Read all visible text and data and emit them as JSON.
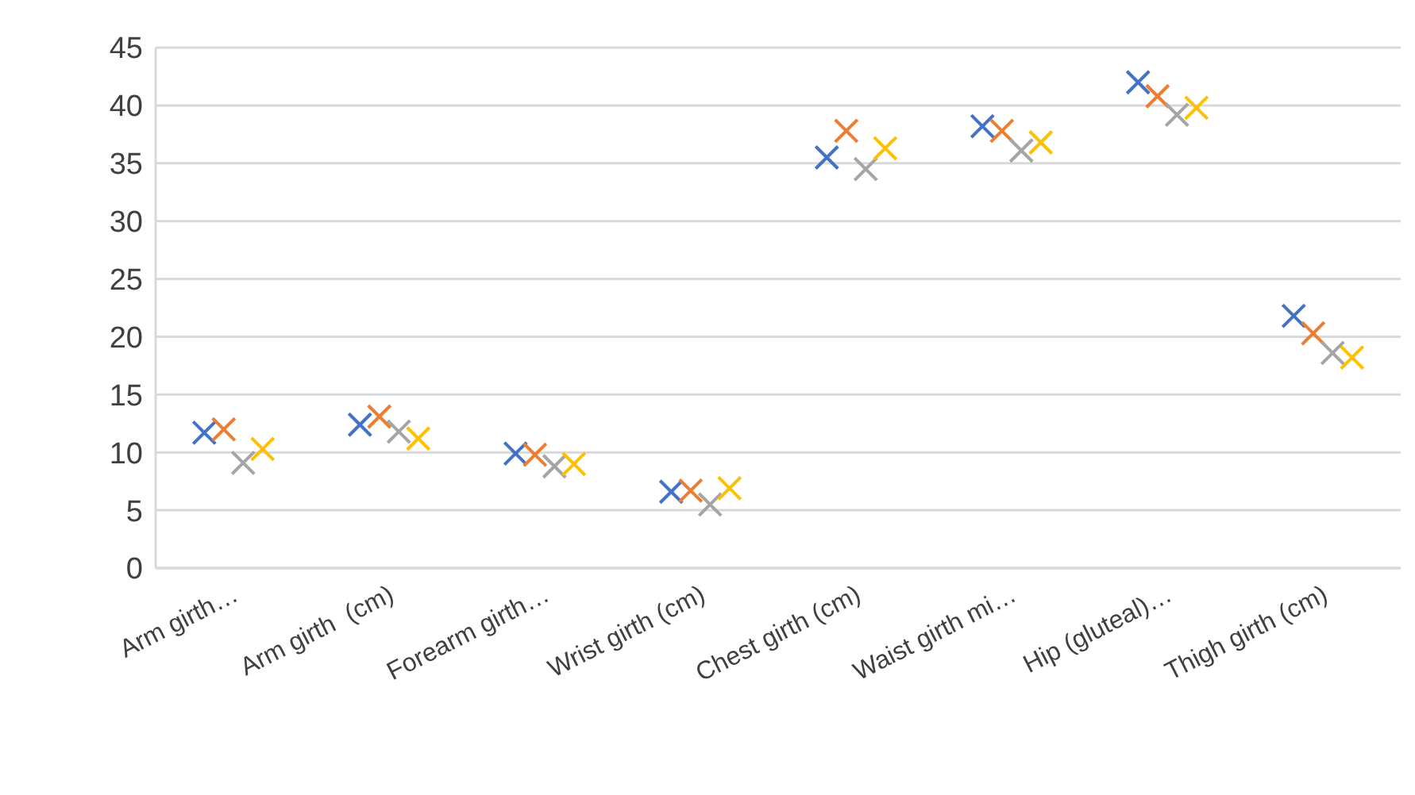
{
  "chart_data": {
    "type": "scatter",
    "categories": [
      "Arm girth…",
      "Arm girth  (cm)",
      "Forearm girth…",
      "Wrist girth (cm)",
      "Chest girth (cm)",
      "Waist girth mi…",
      "Hip (gluteal)…",
      "Thigh girth (cm)"
    ],
    "series": [
      {
        "color": "#4472c4",
        "values": [
          11.7,
          12.4,
          9.9,
          6.6,
          35.5,
          38.2,
          42,
          21.8
        ]
      },
      {
        "color": "#ed7d31",
        "values": [
          12,
          13.1,
          9.8,
          6.7,
          37.8,
          37.8,
          40.8,
          20.3
        ]
      },
      {
        "color": "#a5a5a5",
        "values": [
          9.1,
          11.8,
          8.8,
          5.5,
          34.5,
          36.1,
          39.2,
          18.6
        ]
      },
      {
        "color": "#ffc000",
        "values": [
          10.3,
          11.2,
          9,
          6.9,
          36.3,
          36.8,
          39.8,
          18.2
        ]
      }
    ],
    "ylim": [
      0,
      45
    ],
    "yticks": [
      0,
      5,
      10,
      15,
      20,
      25,
      30,
      35,
      40,
      45
    ],
    "grid": "y",
    "marker": "cross",
    "legend": false
  }
}
